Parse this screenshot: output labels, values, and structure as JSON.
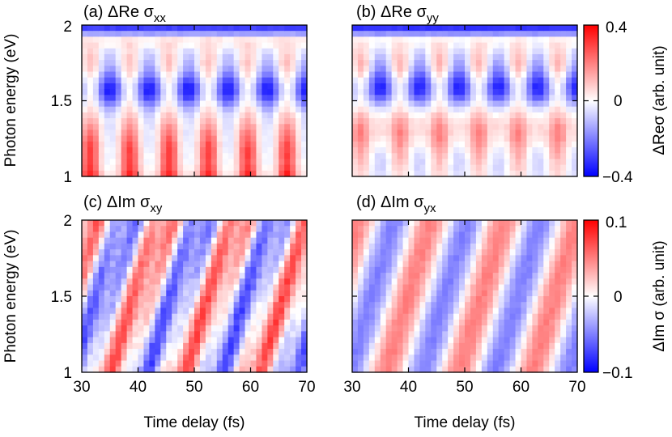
{
  "chart_data": [
    {
      "type": "heatmap",
      "panel_label": "(a)",
      "title_main": "ΔRe σ",
      "title_sub": "xx",
      "xlim": [
        30,
        70
      ],
      "ylim": [
        1,
        2
      ],
      "zlim": [
        -0.4,
        0.4
      ],
      "ylabel": "Photon energy (eV)",
      "xlabel": "",
      "yticks": [
        "1",
        "1.5",
        "2"
      ],
      "pattern": "Blue band near 2 eV; oscillating (period ~7 fs) blue patches near 1.55 eV and red patches below 1.35 eV, strongest red near 1 eV",
      "period_fs": 7,
      "phase_fs": 31.5
    },
    {
      "type": "heatmap",
      "panel_label": "(b)",
      "title_main": "ΔRe σ",
      "title_sub": "yy",
      "xlim": [
        30,
        70
      ],
      "ylim": [
        1,
        2
      ],
      "zlim": [
        -0.4,
        0.4
      ],
      "xlabel": "",
      "yticks": [
        "1",
        "1.5",
        "2"
      ],
      "pattern": "Blue band near 2 eV; oscillating blue patches near 1.55 eV and weaker red patches near 1.2-1.35 eV",
      "period_fs": 7,
      "phase_fs": 31.5
    },
    {
      "type": "heatmap",
      "panel_label": "(c)",
      "title_main": "ΔIm σ",
      "title_sub": "xy",
      "xlim": [
        30,
        70
      ],
      "ylim": [
        1,
        2
      ],
      "zlim": [
        -0.1,
        0.1
      ],
      "ylabel": "Photon energy (eV)",
      "xlabel": "Time delay (fs)",
      "xticks": [
        "30",
        "40",
        "50",
        "60",
        "70"
      ],
      "yticks": [
        "1",
        "1.5",
        "2"
      ],
      "pattern": "Tilted red/blue stripes drifting to later delays at lower energy, period ~13 fs",
      "period_fs": 13
    },
    {
      "type": "heatmap",
      "panel_label": "(d)",
      "title_main": "ΔIm σ",
      "title_sub": "yx",
      "xlim": [
        30,
        70
      ],
      "ylim": [
        1,
        2
      ],
      "zlim": [
        -0.1,
        0.1
      ],
      "xlabel": "Time delay (fs)",
      "xticks": [
        "30",
        "40",
        "50",
        "60",
        "70"
      ],
      "yticks": [
        "1",
        "1.5",
        "2"
      ],
      "pattern": "Smooth tilted red/blue stripes, period ~13 fs",
      "period_fs": 13
    }
  ],
  "colorbars": [
    {
      "ticks": [
        "0.4",
        "0",
        "−0.4"
      ],
      "label": "ΔReσ (arb. unit)",
      "colors": [
        "#0000ff",
        "#ffffff",
        "#ff0000"
      ]
    },
    {
      "ticks": [
        "0.1",
        "0",
        "−0.1"
      ],
      "label": "ΔIm σ (arb. unit)",
      "colors": [
        "#0000ff",
        "#ffffff",
        "#ff0000"
      ]
    }
  ]
}
